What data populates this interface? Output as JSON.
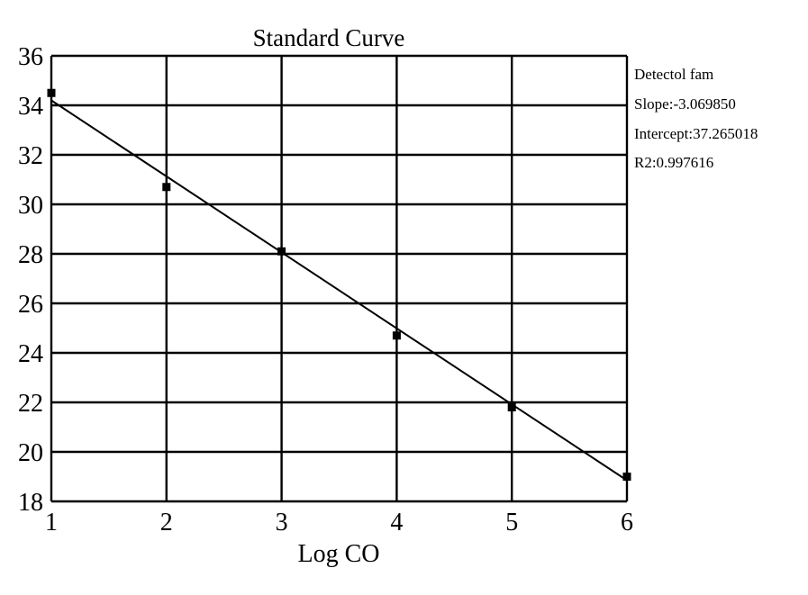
{
  "chart_data": {
    "type": "scatter",
    "title": "Standard Curve",
    "xlabel": "Log CO",
    "ylabel": "",
    "xlim": [
      1,
      6
    ],
    "ylim": [
      18,
      36
    ],
    "xticks": [
      1,
      2,
      3,
      4,
      5,
      6
    ],
    "yticks": [
      18,
      20,
      22,
      24,
      26,
      28,
      30,
      32,
      34,
      36
    ],
    "grid": true,
    "series": [
      {
        "points": [
          {
            "x": 1,
            "y": 34.5
          },
          {
            "x": 2,
            "y": 30.7
          },
          {
            "x": 3,
            "y": 28.1
          },
          {
            "x": 4,
            "y": 24.7
          },
          {
            "x": 5,
            "y": 21.8
          },
          {
            "x": 6,
            "y": 19.0
          }
        ]
      }
    ],
    "fit_line": {
      "x": [
        1,
        6
      ],
      "y": [
        34.2,
        18.85
      ]
    },
    "annotations": [
      "Detectol fam",
      "Slope:-3.069850",
      "Intercept:37.265018",
      "R2:0.997616"
    ]
  }
}
